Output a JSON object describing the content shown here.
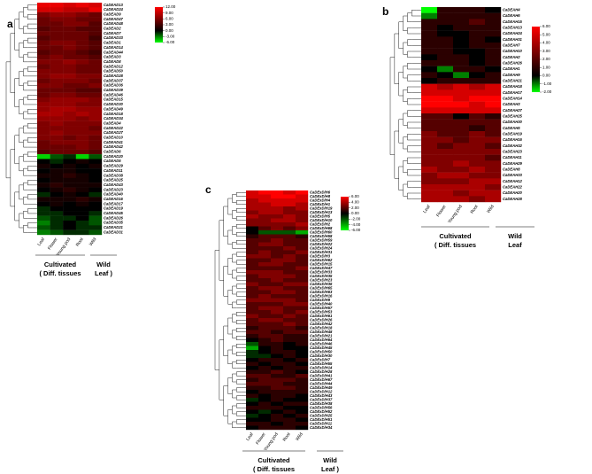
{
  "panels": [
    {
      "letter": "a",
      "columns": [
        "Leaf",
        "Flower",
        "Young pod",
        "Root",
        "Wild"
      ],
      "group_labels": [
        [
          "Cultivated",
          "( Diff. tissues"
        ],
        [
          "Wild",
          "Leaf )"
        ]
      ],
      "legend_ticks": [
        12,
        9,
        6,
        3,
        0,
        -3,
        -6
      ],
      "legend_labels": [
        "12.00",
        "9.00",
        "6.00",
        "3.00",
        "0.00",
        "-3.00",
        "-6.00"
      ],
      "genes": [
        "CaDEAD13",
        "CaDEAD24",
        "CaDEAD9",
        "CaDEAD47",
        "CaDEAD48",
        "CaDEAD2",
        "CaDEAD7",
        "CaDEAD33",
        "CaDEAD1",
        "CaDEAD14",
        "CaDEAD44",
        "CaDEAD3",
        "CaDEAD8",
        "CaDEAD12",
        "CaDEAD50",
        "CaDEAD28",
        "CaDEAD37",
        "CaDEAD36",
        "CaDEAD39",
        "CaDEAD46",
        "CaDEAD15",
        "CaDEAD30",
        "CaDEAD49",
        "CaDEAD18",
        "CaDEAD34",
        "CaDEAD4",
        "CaDEAD22",
        "CaDEAD27",
        "CaDEAD10",
        "CaDEAD41",
        "CaDEAD42",
        "CaDEAD6",
        "CaDEAD20",
        "CaDEAD5",
        "CaDEAD29",
        "CaDEAD11",
        "CaDEAD38",
        "CaDEAD25",
        "CaDEAD43",
        "CaDEAD23",
        "CaDEAD40",
        "CaDEAD16",
        "CaDEAD17",
        "CaDEAD19",
        "CaDEAD45",
        "CaDEAD26",
        "CaDEAD35",
        "CaDEAD21",
        "CaDEAD31"
      ],
      "values": [
        [
          11,
          11,
          10,
          11,
          10
        ],
        [
          10,
          10,
          9,
          9,
          11
        ],
        [
          6,
          7,
          7,
          6,
          5
        ],
        [
          5,
          6,
          6,
          5,
          5
        ],
        [
          5,
          5,
          6,
          6,
          4
        ],
        [
          4,
          5,
          5,
          4,
          4
        ],
        [
          5,
          5,
          5,
          5,
          4
        ],
        [
          4,
          5,
          5,
          5,
          3
        ],
        [
          5,
          6,
          6,
          5,
          4
        ],
        [
          5,
          5,
          6,
          5,
          4
        ],
        [
          4,
          5,
          5,
          4,
          3
        ],
        [
          5,
          6,
          5,
          5,
          4
        ],
        [
          6,
          6,
          7,
          6,
          5
        ],
        [
          5,
          6,
          6,
          5,
          5
        ],
        [
          6,
          6,
          6,
          5,
          5
        ],
        [
          6,
          7,
          7,
          6,
          6
        ],
        [
          5,
          6,
          6,
          6,
          5
        ],
        [
          6,
          6,
          5,
          5,
          6
        ],
        [
          5,
          5,
          5,
          4,
          4
        ],
        [
          5,
          6,
          6,
          5,
          5
        ],
        [
          6,
          7,
          7,
          7,
          6
        ],
        [
          7,
          7,
          7,
          6,
          6
        ],
        [
          7,
          8,
          8,
          7,
          7
        ],
        [
          8,
          8,
          7,
          8,
          7
        ],
        [
          7,
          7,
          7,
          6,
          7
        ],
        [
          6,
          7,
          6,
          6,
          6
        ],
        [
          6,
          6,
          6,
          6,
          5
        ],
        [
          6,
          7,
          6,
          6,
          6
        ],
        [
          6,
          6,
          5,
          6,
          5
        ],
        [
          5,
          6,
          6,
          6,
          5
        ],
        [
          5,
          5,
          5,
          6,
          5
        ],
        [
          4,
          5,
          5,
          5,
          4
        ],
        [
          -5,
          -2,
          -1,
          -5,
          -2
        ],
        [
          0,
          -1,
          0,
          1,
          0
        ],
        [
          1,
          0,
          1,
          0,
          1
        ],
        [
          0,
          1,
          1,
          0,
          0
        ],
        [
          1,
          1,
          2,
          1,
          0
        ],
        [
          0,
          1,
          1,
          1,
          0
        ],
        [
          1,
          2,
          1,
          1,
          1
        ],
        [
          0,
          1,
          2,
          1,
          0
        ],
        [
          -1,
          0,
          1,
          0,
          -1
        ],
        [
          1,
          1,
          1,
          2,
          1
        ],
        [
          0,
          1,
          0,
          1,
          0
        ],
        [
          -1,
          0,
          0,
          0,
          0
        ],
        [
          -1,
          -1,
          0,
          0,
          -1
        ],
        [
          -2,
          -1,
          -1,
          0,
          -2
        ],
        [
          -3,
          -1,
          0,
          -1,
          -2
        ],
        [
          -2,
          -1,
          0,
          -1,
          -1
        ],
        [
          -3,
          -2,
          -1,
          -1,
          -2
        ]
      ]
    },
    {
      "letter": "b",
      "columns": [
        "Leaf",
        "Flower",
        "Young pod",
        "Root",
        "Wild"
      ],
      "group_labels": [
        [
          "Cultivated",
          "( Diff. tissues"
        ],
        [
          "Wild",
          "Leaf"
        ]
      ],
      "legend_ticks": [
        6,
        5,
        4,
        3,
        2,
        1,
        0,
        -1,
        -2
      ],
      "legend_labels": [
        "6.00",
        "5.00",
        "4.00",
        "3.00",
        "2.00",
        "1.00",
        "0.00",
        "-1.00",
        "-2.00"
      ],
      "genes": [
        "CaDEAH4",
        "CaDEAH6",
        "CaDEAH15",
        "CaDEAH13",
        "CaDEAH24",
        "CaDEAH31",
        "CaDEAH7",
        "CaDEAH10",
        "CaDEAH2",
        "CaDEAH26",
        "CaDEAH1",
        "CaDEAH9",
        "CaDEAH21",
        "CaDEAH18",
        "CaDEAH17",
        "CaDEAH14",
        "CaDEAH3",
        "CaDEAH27",
        "CaDEAH25",
        "CaDEAH30",
        "CaDEAH5",
        "CaDEAH19",
        "CaDEAH16",
        "CaDEAH32",
        "CaDEAH23",
        "CaDEAH11",
        "CaDEAH29",
        "CaDEAH8",
        "CaDEAH33",
        "CaDEAH12",
        "CaDEAH22",
        "CaDEAH20",
        "CaDEAH28"
      ],
      "values": [
        [
          -2,
          1,
          1,
          1,
          0
        ],
        [
          -1,
          1,
          1,
          1,
          1
        ],
        [
          1,
          1,
          1,
          2,
          1
        ],
        [
          1,
          0,
          1,
          1,
          1
        ],
        [
          1,
          0,
          0,
          1,
          1
        ],
        [
          1,
          1,
          0,
          1,
          0
        ],
        [
          1,
          1,
          0,
          1,
          1
        ],
        [
          1,
          1,
          0,
          0,
          1
        ],
        [
          0,
          1,
          1,
          0,
          1
        ],
        [
          1,
          1,
          1,
          0,
          1
        ],
        [
          0,
          -1,
          1,
          1,
          0
        ],
        [
          1,
          0,
          -1,
          0,
          1
        ],
        [
          0,
          1,
          1,
          1,
          1
        ],
        [
          5,
          4,
          5,
          4,
          5
        ],
        [
          5,
          5,
          5,
          5,
          5
        ],
        [
          6,
          6,
          5,
          6,
          6
        ],
        [
          6,
          6,
          6,
          5,
          6
        ],
        [
          5,
          5,
          5,
          5,
          5
        ],
        [
          2,
          2,
          0,
          2,
          1
        ],
        [
          2,
          2,
          2,
          2,
          2
        ],
        [
          2,
          2,
          2,
          1,
          2
        ],
        [
          3,
          2,
          2,
          3,
          2
        ],
        [
          3,
          3,
          2,
          3,
          3
        ],
        [
          3,
          2,
          3,
          3,
          2
        ],
        [
          3,
          3,
          3,
          3,
          3
        ],
        [
          3,
          3,
          3,
          3,
          2
        ],
        [
          3,
          3,
          4,
          3,
          3
        ],
        [
          4,
          3,
          3,
          4,
          3
        ],
        [
          3,
          4,
          4,
          3,
          3
        ],
        [
          3,
          3,
          3,
          4,
          4
        ],
        [
          4,
          4,
          4,
          4,
          3
        ],
        [
          4,
          4,
          3,
          4,
          4
        ],
        [
          4,
          4,
          4,
          3,
          4
        ]
      ]
    },
    {
      "letter": "c",
      "columns": [
        "Leaf",
        "Flower",
        "Young pod",
        "Root",
        "Wild"
      ],
      "group_labels": [
        [
          "Cultivated",
          "( Diff. tissues"
        ],
        [
          "Wild",
          "Leaf )"
        ]
      ],
      "legend_ticks": [
        6,
        4,
        2,
        0,
        -2,
        -4,
        -6
      ],
      "legend_labels": [
        "6.00",
        "4.00",
        "2.00",
        "0.00",
        "-2.00",
        "-4.00",
        "-6.00"
      ],
      "genes": [
        "CaDExD/H6",
        "CaDExD/H8",
        "CaDExD/H4",
        "CaDExD/H1",
        "CaDExD/H19",
        "CaDExD/H13",
        "CaDExD/H5",
        "CaDExD/H10",
        "CaDExD/H2",
        "CaDExD/H68",
        "CaDExD/H60",
        "CaDExD/H58",
        "CaDExD/H59",
        "CaDExD/H22",
        "CaDExD/H24",
        "CaDExD/H31",
        "CaDExD/H3",
        "CaDExD/H62",
        "CaDExD/H15",
        "CaDExD/H47",
        "CaDExD/H33",
        "CaDExD/H35",
        "CaDExD/H23",
        "CaDExD/H36",
        "CaDExD/H65",
        "CaDExD/H63",
        "CaDExD/H16",
        "CaDExD/H9",
        "CaDExD/H40",
        "CaDExD/H57",
        "CaDExD/H53",
        "CaDExD/H61",
        "CaDExD/H26",
        "CaDExD/H42",
        "CaDExD/H18",
        "CaDExD/H48",
        "CaDExD/H21",
        "CaDExD/H64",
        "CaDExD/H46",
        "CaDExD/H45",
        "CaDExD/H50",
        "CaDExD/H30",
        "CaDExD/H7",
        "CaDExD/H55",
        "CaDExD/H14",
        "CaDExD/H28",
        "CaDExD/H41",
        "CaDExD/H67",
        "CaDExD/H44",
        "CaDExD/H49",
        "CaDExD/H12",
        "CaDExD/H43",
        "CaDExD/H37",
        "CaDExD/H38",
        "CaDExD/H56",
        "CaDExD/H52",
        "CaDExD/H25",
        "CaDExD/H51",
        "CaDExD/H11",
        "CaDExD/H34"
      ],
      "values": [
        [
          5,
          6,
          6,
          5,
          6
        ],
        [
          5,
          5,
          6,
          6,
          5
        ],
        [
          4,
          5,
          5,
          5,
          5
        ],
        [
          4,
          4,
          5,
          5,
          4
        ],
        [
          4,
          4,
          4,
          3,
          4
        ],
        [
          3,
          4,
          4,
          3,
          3
        ],
        [
          4,
          3,
          3,
          4,
          3
        ],
        [
          3,
          3,
          4,
          4,
          3
        ],
        [
          3,
          3,
          3,
          3,
          4
        ],
        [
          0,
          2,
          3,
          2,
          3
        ],
        [
          0,
          -2,
          -2,
          -2,
          -4
        ],
        [
          1,
          2,
          2,
          2,
          1
        ],
        [
          2,
          2,
          3,
          2,
          2
        ],
        [
          2,
          3,
          3,
          2,
          2
        ],
        [
          2,
          2,
          2,
          3,
          2
        ],
        [
          2,
          3,
          2,
          2,
          3
        ],
        [
          3,
          3,
          2,
          3,
          2
        ],
        [
          2,
          2,
          3,
          3,
          2
        ],
        [
          2,
          3,
          3,
          2,
          2
        ],
        [
          2,
          2,
          2,
          2,
          3
        ],
        [
          3,
          3,
          3,
          2,
          2
        ],
        [
          2,
          3,
          3,
          3,
          2
        ],
        [
          2,
          2,
          3,
          2,
          2
        ],
        [
          3,
          2,
          2,
          3,
          3
        ],
        [
          2,
          3,
          3,
          2,
          2
        ],
        [
          2,
          2,
          3,
          3,
          2
        ],
        [
          2,
          3,
          2,
          2,
          2
        ],
        [
          3,
          3,
          3,
          3,
          2
        ],
        [
          2,
          2,
          2,
          3,
          3
        ],
        [
          2,
          3,
          3,
          2,
          2
        ],
        [
          2,
          2,
          3,
          2,
          3
        ],
        [
          3,
          2,
          2,
          3,
          2
        ],
        [
          2,
          3,
          3,
          2,
          2
        ],
        [
          2,
          2,
          2,
          3,
          2
        ],
        [
          1,
          2,
          2,
          2,
          1
        ],
        [
          2,
          2,
          1,
          2,
          2
        ],
        [
          1,
          2,
          2,
          1,
          1
        ],
        [
          0,
          1,
          2,
          1,
          1
        ],
        [
          -2,
          1,
          1,
          0,
          1
        ],
        [
          -4,
          0,
          1,
          0,
          0
        ],
        [
          -1,
          0,
          1,
          1,
          0
        ],
        [
          -1,
          -1,
          0,
          1,
          0
        ],
        [
          0,
          1,
          1,
          0,
          1
        ],
        [
          1,
          0,
          1,
          1,
          0
        ],
        [
          0,
          1,
          0,
          1,
          1
        ],
        [
          1,
          1,
          2,
          1,
          0
        ],
        [
          2,
          2,
          1,
          1,
          2
        ],
        [
          1,
          2,
          2,
          2,
          1
        ],
        [
          2,
          2,
          2,
          1,
          1
        ],
        [
          1,
          1,
          2,
          2,
          1
        ],
        [
          0,
          1,
          1,
          1,
          1
        ],
        [
          1,
          0,
          1,
          1,
          0
        ],
        [
          -1,
          0,
          1,
          0,
          0
        ],
        [
          0,
          1,
          0,
          1,
          1
        ],
        [
          1,
          1,
          1,
          0,
          0
        ],
        [
          0,
          -1,
          0,
          1,
          0
        ],
        [
          -1,
          0,
          1,
          0,
          1
        ],
        [
          0,
          0,
          1,
          1,
          0
        ],
        [
          1,
          1,
          0,
          1,
          1
        ],
        [
          0,
          1,
          1,
          1,
          0
        ]
      ]
    }
  ]
}
